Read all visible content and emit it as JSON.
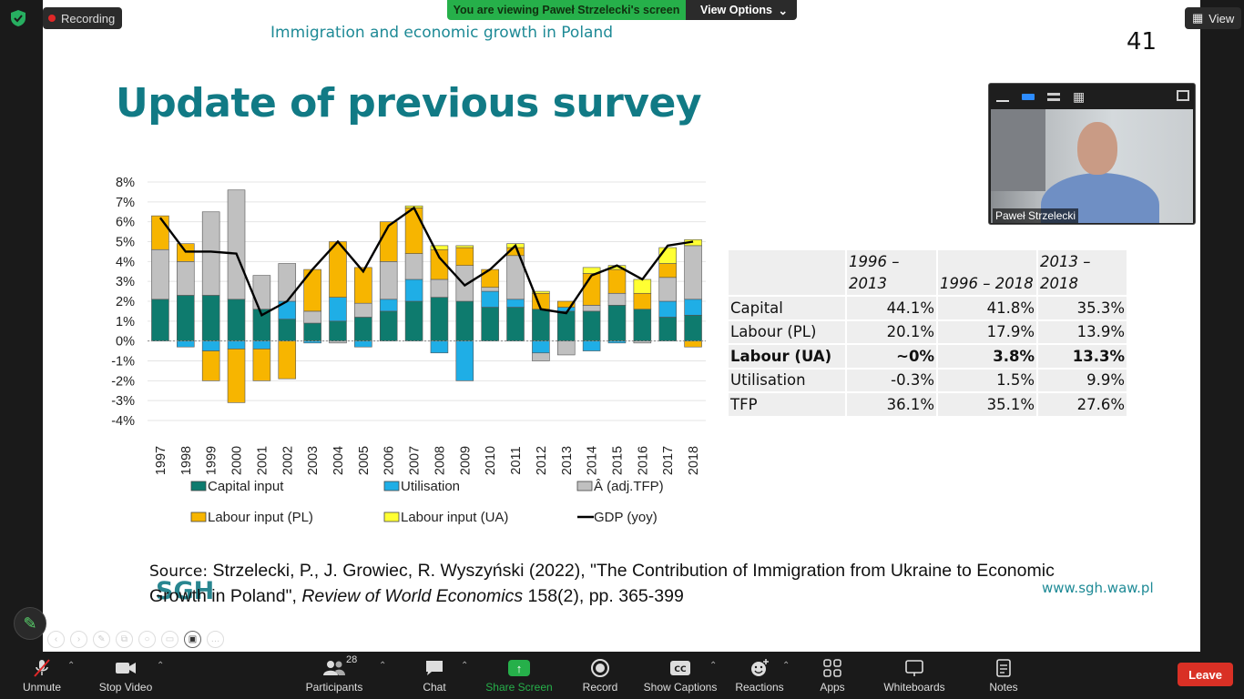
{
  "top": {
    "recording_label": "Recording",
    "share_banner": "You are viewing Paweł Strzelecki's screen",
    "view_options_label": "View Options",
    "view_label": "View"
  },
  "slide": {
    "header": "Immigration and economic growth in Poland",
    "number": "41",
    "title": "Update of previous survey",
    "source_label": "Source:",
    "source_text1": " Strzelecki, P., J. Growiec, R. Wyszyński (2022), \"The Contribution of Immigration from Ukraine to Economic Growth in Poland\", ",
    "source_journal": "Review of World Economics",
    "source_text2": " 158(2), pp. 365-399",
    "logo": "SGH",
    "url": "www.sgh.waw.pl"
  },
  "chart_data": {
    "type": "bar",
    "stacked": true,
    "categories": [
      "1997",
      "1998",
      "1999",
      "2000",
      "2001",
      "2002",
      "2003",
      "2004",
      "2005",
      "2006",
      "2007",
      "2008",
      "2009",
      "2010",
      "2011",
      "2012",
      "2013",
      "2014",
      "2015",
      "2016",
      "2017",
      "2018"
    ],
    "series": [
      {
        "name": "Capital input",
        "color": "#0e7b6e",
        "values": [
          2.1,
          2.3,
          2.3,
          2.1,
          1.6,
          1.1,
          0.9,
          1.0,
          1.2,
          1.5,
          2.0,
          2.2,
          2.0,
          1.7,
          1.7,
          1.6,
          1.5,
          1.5,
          1.8,
          1.6,
          1.2,
          1.3
        ]
      },
      {
        "name": "Utilisation",
        "color": "#1faee6",
        "values": [
          0.0,
          -0.3,
          -0.5,
          -0.4,
          -0.4,
          0.9,
          -0.1,
          1.2,
          -0.3,
          0.6,
          1.1,
          -0.6,
          -2.0,
          0.8,
          0.4,
          -0.6,
          0.2,
          -0.5,
          -0.1,
          0.0,
          0.8,
          0.8
        ]
      },
      {
        "name": "(adj.TFP)",
        "color": "#c0c0c0",
        "values": [
          2.5,
          1.7,
          4.2,
          5.5,
          1.7,
          1.9,
          0.6,
          -0.1,
          0.7,
          1.9,
          1.3,
          0.9,
          1.8,
          0.2,
          2.2,
          -0.4,
          -0.7,
          0.3,
          0.6,
          -0.1,
          1.2,
          2.7
        ]
      },
      {
        "name": "Labour input (PL)",
        "color": "#f7b500",
        "values": [
          1.7,
          0.9,
          -1.5,
          -2.7,
          -1.6,
          -1.9,
          2.1,
          2.8,
          1.8,
          2.0,
          2.3,
          1.5,
          0.9,
          0.9,
          0.4,
          0.8,
          0.3,
          1.6,
          1.2,
          0.8,
          0.7,
          -0.3
        ]
      },
      {
        "name": "Labour input (UA)",
        "color": "#ffff33",
        "values": [
          0.0,
          0.0,
          0.0,
          0.0,
          0.0,
          0.0,
          0.0,
          0.0,
          0.0,
          0.0,
          0.1,
          0.2,
          0.1,
          0.0,
          0.2,
          0.1,
          0.0,
          0.3,
          0.2,
          0.7,
          0.8,
          0.3
        ]
      }
    ],
    "line": {
      "name": "GDP (yoy)",
      "color": "#000000",
      "values": [
        6.2,
        4.5,
        4.5,
        4.4,
        1.3,
        2.0,
        3.6,
        5.0,
        3.5,
        5.8,
        6.7,
        4.2,
        2.8,
        3.6,
        4.8,
        1.6,
        1.4,
        3.3,
        3.8,
        3.1,
        4.8,
        5.0
      ]
    },
    "ylim": [
      -4,
      8
    ],
    "yticks": [
      "8%",
      "7%",
      "6%",
      "5%",
      "4%",
      "3%",
      "2%",
      "1%",
      "0%",
      "-1%",
      "-2%",
      "-3%",
      "-4%"
    ],
    "legend": [
      {
        "label": "Capital input",
        "color": "#0e7b6e",
        "kind": "box"
      },
      {
        "label": "Utilisation",
        "color": "#1faee6",
        "kind": "box"
      },
      {
        "label": "Â     (adj.TFP)",
        "color": "#c0c0c0",
        "kind": "box"
      },
      {
        "label": "Labour input (PL)",
        "color": "#f7b500",
        "kind": "box"
      },
      {
        "label": "Labour input (UA)",
        "color": "#ffff33",
        "kind": "box"
      },
      {
        "label": "GDP (yoy)",
        "color": "#000000",
        "kind": "line"
      }
    ]
  },
  "table": {
    "headers": [
      "",
      "1996 –\n2013",
      "\n1996 – 2018",
      "2013 –\n2018"
    ],
    "rows": [
      {
        "label": "Capital",
        "v1": "44.1%",
        "v2": "41.8%",
        "v3": "35.3%",
        "bold": false
      },
      {
        "label": "Labour (PL)",
        "v1": "20.1%",
        "v2": "17.9%",
        "v3": "13.9%",
        "bold": false
      },
      {
        "label": "Labour (UA)",
        "v1": "~0%",
        "v2": "3.8%",
        "v3": "13.3%",
        "bold": true
      },
      {
        "label": "Utilisation",
        "v1": "-0.3%",
        "v2": "1.5%",
        "v3": "9.9%",
        "bold": false
      },
      {
        "label": "TFP",
        "v1": "36.1%",
        "v2": "35.1%",
        "v3": "27.6%",
        "bold": false
      }
    ]
  },
  "video": {
    "participant_name": "Paweł Strzelecki"
  },
  "toolbar": {
    "unmute": "Unmute",
    "stop_video": "Stop Video",
    "participants": "Participants",
    "participants_count": "28",
    "chat": "Chat",
    "share_screen": "Share Screen",
    "record": "Record",
    "show_captions": "Show Captions",
    "reactions": "Reactions",
    "apps": "Apps",
    "whiteboards": "Whiteboards",
    "notes": "Notes",
    "leave": "Leave"
  }
}
